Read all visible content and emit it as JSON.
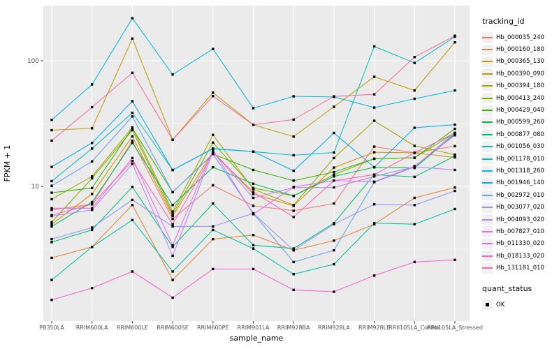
{
  "chart": {
    "y_axis_title": "FPKM + 1",
    "x_axis_title": "sample_name",
    "legend_title_tracking": "tracking_id",
    "legend_title_quant": "quant_status",
    "quant_ok_label": "OK",
    "y_tick_labels": [
      {
        "label": "100",
        "value": 100
      },
      {
        "label": "10",
        "value": 10
      }
    ]
  },
  "colors": {
    "panel_bg": "#EBEBEB",
    "grid": "#FFFFFF",
    "axis_text": "#4D4D4D",
    "text": "#000000",
    "legend_key_bg": "#F1F1F1",
    "marker": "#000000"
  },
  "chart_data": {
    "type": "line",
    "title": "",
    "xlabel": "sample_name",
    "ylabel": "FPKM + 1",
    "y_scale": "log10",
    "ylim": [
      0.85,
      270
    ],
    "y_major_gridlines": [
      10,
      100
    ],
    "y_minor_gridlines": [
      3.162,
      31.623
    ],
    "grid": true,
    "legend_position": "right",
    "point_marker": {
      "shape": "filled-square",
      "color": "#000000",
      "meaning": "quant_status = OK"
    },
    "categories": [
      "PB350LA",
      "RRIM600LA",
      "RRIM600LE",
      "RRIM600SE",
      "RRIM600PE",
      "RRIM901LA",
      "RRIM928BA",
      "RRIM928LA",
      "RRIM928LE",
      "RRII105LA_Control",
      "RRII105LA_Stressed"
    ],
    "series": [
      {
        "name": "Hb_000035_240",
        "color": "#F8766D",
        "values": [
          6.5,
          7.2,
          23.0,
          5.5,
          10.2,
          7.0,
          6.4,
          7.3,
          20.7,
          18.5,
          20.9
        ]
      },
      {
        "name": "Hb_000160_180",
        "color": "#EA8331",
        "values": [
          2.7,
          3.3,
          7.1,
          1.8,
          3.8,
          4.1,
          3.1,
          3.7,
          5.0,
          8.1,
          9.8
        ]
      },
      {
        "name": "Hb_000365_130",
        "color": "#D89000",
        "values": [
          5.0,
          8.7,
          25.0,
          5.8,
          18.9,
          8.7,
          7.0,
          14.1,
          18.7,
          18.5,
          17.0
        ]
      },
      {
        "name": "Hb_000390_090",
        "color": "#C09B00",
        "values": [
          28.0,
          29.0,
          150.0,
          23.5,
          55.7,
          30.9,
          24.9,
          43.0,
          74.5,
          58.0,
          140.0
        ]
      },
      {
        "name": "Hb_000394_180",
        "color": "#A3A500",
        "values": [
          7.9,
          12.0,
          29.4,
          6.3,
          25.7,
          9.5,
          7.1,
          16.8,
          33.3,
          21.0,
          17.9
        ]
      },
      {
        "name": "Hb_000413_240",
        "color": "#7CAE00",
        "values": [
          5.2,
          11.6,
          28.0,
          6.0,
          22.3,
          9.7,
          8.4,
          12.4,
          16.6,
          16.9,
          26.6
        ]
      },
      {
        "name": "Hb_000429_040",
        "color": "#39B600",
        "values": [
          8.9,
          9.7,
          29.0,
          9.0,
          18.1,
          13.5,
          11.1,
          13.0,
          16.6,
          16.9,
          28.7
        ]
      },
      {
        "name": "Hb_000599_260",
        "color": "#00BB4E",
        "values": [
          4.8,
          7.5,
          22.2,
          7.1,
          14.2,
          10.5,
          8.4,
          12.0,
          14.2,
          14.0,
          26.0
        ]
      },
      {
        "name": "Hb_000877_080",
        "color": "#00BF7D",
        "values": [
          3.6,
          4.5,
          9.9,
          3.3,
          7.3,
          3.4,
          3.2,
          5.1,
          12.4,
          11.9,
          17.5
        ]
      },
      {
        "name": "Hb_001056_030",
        "color": "#00C1A3",
        "values": [
          1.8,
          3.3,
          5.4,
          2.1,
          4.5,
          3.2,
          2.0,
          2.4,
          5.1,
          5.0,
          6.6
        ]
      },
      {
        "name": "Hb_001178_010",
        "color": "#00BFC4",
        "values": [
          11.0,
          20.0,
          38.5,
          13.5,
          20.0,
          18.9,
          17.7,
          18.6,
          130.0,
          96.0,
          155.0
        ]
      },
      {
        "name": "Hb_001318_260",
        "color": "#00B8E5",
        "values": [
          33.8,
          64.7,
          218.0,
          77.6,
          124.0,
          41.9,
          52.1,
          51.5,
          42.4,
          49.8,
          58.0
        ]
      },
      {
        "name": "Hb_001946_140",
        "color": "#00ACFC",
        "values": [
          14.3,
          22.2,
          47.6,
          13.5,
          19.9,
          18.9,
          13.3,
          26.6,
          14.2,
          29.3,
          31.0
        ]
      },
      {
        "name": "Hb_002972_010",
        "color": "#619CFF",
        "values": [
          10.1,
          15.8,
          36.0,
          9.0,
          18.1,
          6.1,
          2.5,
          3.1,
          10.8,
          14.3,
          26.6
        ]
      },
      {
        "name": "Hb_003077_020",
        "color": "#9590FF",
        "values": [
          3.8,
          4.7,
          7.8,
          4.8,
          4.8,
          6.1,
          3.1,
          5.0,
          7.2,
          7.1,
          9.2
        ]
      },
      {
        "name": "Hb_004093_020",
        "color": "#B983FF",
        "values": [
          5.8,
          6.5,
          15.1,
          2.8,
          18.9,
          8.1,
          9.8,
          9.8,
          12.0,
          14.3,
          13.5
        ]
      },
      {
        "name": "Hb_007827_010",
        "color": "#E76BF3",
        "values": [
          6.7,
          6.7,
          16.8,
          3.4,
          19.5,
          6.0,
          9.9,
          11.1,
          10.9,
          14.5,
          25.5
        ]
      },
      {
        "name": "Hb_011330_020",
        "color": "#FD61D1",
        "values": [
          1.25,
          1.55,
          2.1,
          1.3,
          2.2,
          2.2,
          1.5,
          1.45,
          1.95,
          2.5,
          2.6
        ]
      },
      {
        "name": "Hb_018133_020",
        "color": "#FF62BC",
        "values": [
          5.9,
          7.2,
          15.9,
          5.0,
          18.5,
          9.0,
          5.7,
          11.1,
          12.4,
          18.5,
          26.6
        ]
      },
      {
        "name": "Hb_131181_010",
        "color": "#FF6A98",
        "values": [
          23.1,
          42.7,
          80.1,
          23.5,
          52.3,
          30.9,
          34.0,
          52.0,
          54.0,
          107.0,
          158.0
        ]
      }
    ]
  }
}
